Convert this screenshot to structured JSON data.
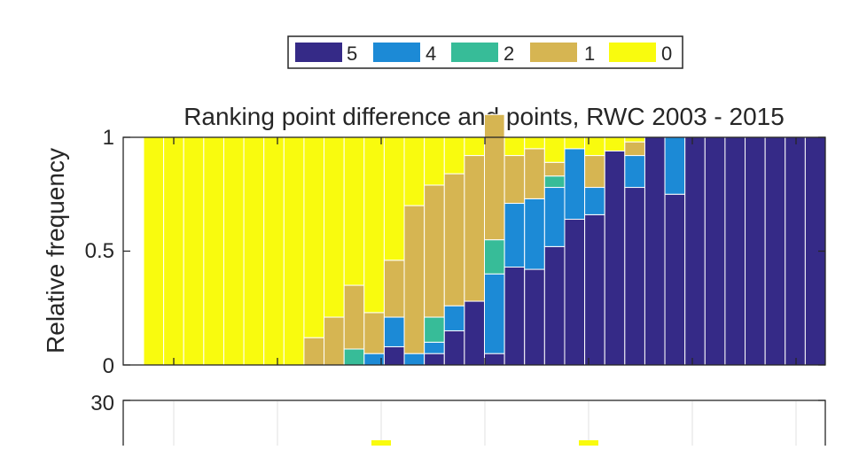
{
  "chart_data": [
    {
      "type": "bar",
      "stacked": true,
      "normalized": true,
      "title": "Ranking point difference and points, RWC 2003 - 2015",
      "xlabel": "",
      "ylabel": "Relative frequency",
      "ylim": [
        0,
        1
      ],
      "yticks": [
        "0",
        "0.5",
        "1"
      ],
      "legend": {
        "placement": "top",
        "orientation": "horizontal",
        "order": [
          "5",
          "4",
          "2",
          "1",
          "0"
        ]
      },
      "colors": {
        "5": "#352a87",
        "4": "#1c8ad6",
        "2": "#37bc98",
        "1": "#d6b552",
        "0": "#f9fb0e"
      },
      "series": [
        {
          "name": "5",
          "values": [
            0,
            0,
            0,
            0,
            0,
            0,
            0,
            0,
            0,
            0,
            0,
            0,
            0.08,
            0,
            0.05,
            0.15,
            0.28,
            0.05,
            0.43,
            0.42,
            0.52,
            0.64,
            0.66,
            0.94,
            0.78,
            1,
            0.75,
            1,
            1,
            1,
            1,
            1,
            1,
            1
          ]
        },
        {
          "name": "4",
          "values": [
            0,
            0,
            0,
            0,
            0,
            0,
            0,
            0,
            0,
            0,
            0,
            0.05,
            0.13,
            0.05,
            0.05,
            0.11,
            0,
            0.35,
            0.28,
            0.31,
            0.26,
            0.31,
            0.12,
            0,
            0.14,
            0,
            0.25,
            0,
            0,
            0,
            0,
            0,
            0,
            0
          ]
        },
        {
          "name": "2",
          "values": [
            0,
            0,
            0,
            0,
            0,
            0,
            0,
            0,
            0,
            0,
            0.07,
            0,
            0,
            0,
            0.11,
            0,
            0,
            0.15,
            0,
            0,
            0.05,
            0,
            0,
            0,
            0,
            0,
            0,
            0,
            0,
            0,
            0,
            0,
            0,
            0
          ]
        },
        {
          "name": "1",
          "values": [
            0,
            0,
            0,
            0,
            0,
            0,
            0,
            0,
            0.12,
            0.21,
            0.28,
            0.18,
            0.25,
            0.65,
            0.58,
            0.58,
            0.64,
            0.55,
            0.21,
            0.22,
            0.06,
            0,
            0.14,
            0,
            0.06,
            0,
            0,
            0,
            0,
            0,
            0,
            0,
            0,
            0
          ]
        },
        {
          "name": "0",
          "values": [
            1,
            1,
            1,
            1,
            1,
            1,
            1,
            1,
            0.88,
            0.79,
            0.65,
            0.77,
            0.54,
            0.3,
            0.21,
            0.16,
            0.08,
            0,
            0.08,
            0.05,
            0.11,
            0.05,
            0.08,
            0.06,
            0.02,
            0,
            0,
            0,
            0,
            0,
            0,
            0,
            0,
            0
          ]
        }
      ]
    },
    {
      "type": "bar",
      "partially_visible": true,
      "title": "",
      "ylabel": "",
      "ylim": [
        0,
        30
      ],
      "yticks": [
        "30"
      ],
      "visible_highlights": 2
    }
  ]
}
